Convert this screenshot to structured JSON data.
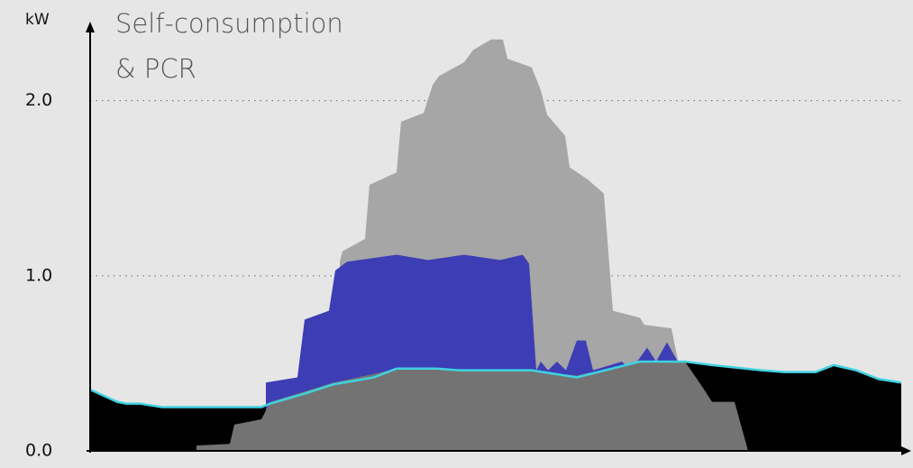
{
  "chart_data": {
    "type": "area",
    "title": [
      "Self-consumption",
      "& PCR"
    ],
    "y_label": "kW",
    "xlim": [
      0,
      90
    ],
    "ylim": [
      0,
      2.4
    ],
    "yticks": [
      {
        "value": 0,
        "label": "0.0"
      },
      {
        "value": 1,
        "label": "1.0"
      },
      {
        "value": 2,
        "label": "2.0"
      }
    ],
    "grid": true,
    "series": [
      {
        "type": "area",
        "color": "#a6a6a6",
        "x": [
          27.7,
          28,
          30.5,
          31,
          34,
          34.5,
          37,
          38,
          38.7,
          41.5,
          42.5,
          44.5,
          45.8,
          46.3,
          49,
          50,
          50.7,
          52.7,
          53.2,
          55.2,
          57,
          58,
          61,
          61.5,
          64.5,
          65.2
        ],
        "values": [
          1.08,
          1.14,
          1.21,
          1.52,
          1.59,
          1.88,
          1.93,
          2.09,
          2.14,
          2.22,
          2.29,
          2.35,
          2.35,
          2.24,
          2.19,
          2.06,
          1.92,
          1.8,
          1.62,
          1.55,
          1.47,
          0.8,
          0.76,
          0.72,
          0.7,
          0.52
        ]
      },
      {
        "type": "area",
        "color": "#000000",
        "x": [
          0,
          3,
          4,
          5.5,
          8,
          19,
          20,
          24,
          27,
          31.5,
          34,
          38.5,
          41,
          49,
          54,
          61,
          66,
          69,
          74.5,
          77,
          80.5,
          82.5,
          85,
          87.5,
          90
        ],
        "values": [
          0.35,
          0.28,
          0.27,
          0.27,
          0.25,
          0.25,
          0.27,
          0.33,
          0.38,
          0.42,
          0.47,
          0.47,
          0.46,
          0.46,
          0.42,
          0.51,
          0.51,
          0.49,
          0.46,
          0.45,
          0.45,
          0.49,
          0.46,
          0.41,
          0.39
        ]
      },
      {
        "type": "area",
        "color": "#3d3db5",
        "x": [
          19.5,
          23,
          23.8,
          26.5,
          27.2,
          28.5,
          34,
          37.5,
          41.5,
          45.5,
          48,
          48.7,
          49.5,
          50,
          50.8,
          51.8,
          52.8,
          54,
          55,
          55.8,
          59,
          60,
          61.8,
          62.8,
          64,
          65.2
        ],
        "values": [
          0.39,
          0.42,
          0.75,
          0.8,
          1.03,
          1.08,
          1.12,
          1.09,
          1.12,
          1.09,
          1.12,
          1.07,
          0.46,
          0.51,
          0.46,
          0.51,
          0.46,
          0.63,
          0.63,
          0.46,
          0.51,
          0.46,
          0.59,
          0.51,
          0.62,
          0.51
        ]
      },
      {
        "type": "area",
        "color": "#737373",
        "x": [
          11.8,
          15.5,
          16,
          19,
          20,
          27,
          31.5,
          34,
          38,
          41,
          48,
          54,
          61,
          66,
          68,
          69,
          71.5,
          73
        ],
        "values": [
          0.03,
          0.04,
          0.15,
          0.18,
          0.28,
          0.39,
          0.44,
          0.47,
          0.47,
          0.46,
          0.46,
          0.43,
          0.51,
          0.51,
          0.36,
          0.28,
          0.28,
          0
        ]
      },
      {
        "type": "line",
        "color": "#3fd3e0",
        "x": [
          0,
          3,
          4,
          5.5,
          8,
          19,
          20,
          24,
          27,
          31.5,
          34,
          38.5,
          41,
          49,
          54,
          61,
          66,
          69,
          74.5,
          77,
          80.5,
          82.5,
          85,
          87.5,
          90
        ],
        "values": [
          0.35,
          0.28,
          0.27,
          0.27,
          0.25,
          0.25,
          0.27,
          0.33,
          0.38,
          0.42,
          0.47,
          0.47,
          0.46,
          0.46,
          0.42,
          0.51,
          0.51,
          0.49,
          0.46,
          0.45,
          0.45,
          0.49,
          0.46,
          0.41,
          0.39
        ]
      }
    ]
  }
}
